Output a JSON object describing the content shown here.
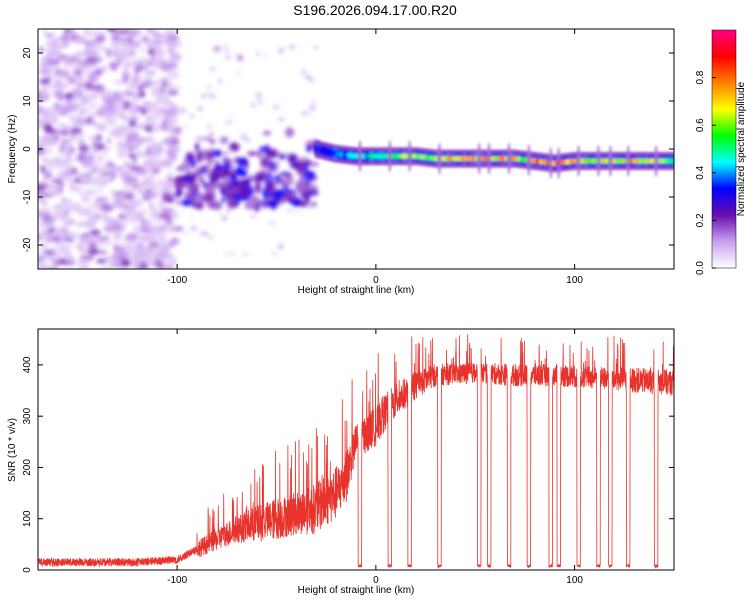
{
  "title": "S196.2026.094.17.00.R20",
  "chart_data": [
    {
      "type": "heatmap",
      "xlabel": "Height of straight line (km)",
      "ylabel": "Frequency (Hz)",
      "xlim": [
        -170,
        150
      ],
      "ylim": [
        -25,
        25
      ],
      "xticks": [
        -100,
        0,
        100
      ],
      "xtick_labels": [
        "-100",
        "0",
        "100"
      ],
      "yticks": [
        -20,
        -10,
        0,
        10,
        20
      ],
      "ytick_labels": [
        "-20",
        "-10",
        "0",
        "10",
        "20"
      ],
      "colorbar": {
        "label": "Normalized spectral amplitude",
        "range": [
          0,
          1
        ],
        "ticks": [
          0.0,
          0.2,
          0.4,
          0.6,
          0.8
        ],
        "tick_labels": [
          "0.0",
          "0.2",
          "0.4",
          "0.6",
          "0.8"
        ],
        "colormap": [
          "#ffffff",
          "#c8a0f0",
          "#6a0dad",
          "#0000ff",
          "#00ffff",
          "#00ff00",
          "#ffff00",
          "#ff8000",
          "#ff0000",
          "#ff0080"
        ]
      },
      "regions": [
        {
          "x_range": [
            -170,
            -100
          ],
          "frequency_range": [
            -25,
            25
          ],
          "amplitude": "low noise scatter"
        },
        {
          "x_range": [
            -100,
            -30
          ],
          "frequency_range": [
            -12,
            8
          ],
          "amplitude": "moderate, fragmented"
        },
        {
          "x_range": [
            -30,
            150
          ],
          "frequency_range": [
            -4,
            2
          ],
          "amplitude": "strong narrow band near -2 Hz"
        }
      ],
      "band": {
        "x": [
          -30,
          -20,
          -10,
          0,
          10,
          20,
          30,
          40,
          50,
          60,
          70,
          80,
          90,
          100,
          110,
          120,
          130,
          140,
          150
        ],
        "frequency": [
          0,
          -1,
          -1.5,
          -1.5,
          -1.5,
          -1.5,
          -2,
          -2,
          -2,
          -2,
          -2,
          -2.5,
          -3,
          -2.5,
          -2.5,
          -2.5,
          -2.5,
          -2.5,
          -2.5
        ],
        "peak_amplitude": [
          0.3,
          0.4,
          0.5,
          0.55,
          0.6,
          0.65,
          0.7,
          0.75,
          0.8,
          0.8,
          0.75,
          0.85,
          0.9,
          0.8,
          0.7,
          0.75,
          0.8,
          0.7,
          0.6
        ]
      }
    },
    {
      "type": "line",
      "xlabel": "Height of straight line (km)",
      "ylabel": "SNR (10 * v/v)",
      "xlim": [
        -170,
        150
      ],
      "ylim": [
        0,
        470
      ],
      "xticks": [
        -100,
        0,
        100
      ],
      "xtick_labels": [
        "-100",
        "0",
        "100"
      ],
      "yticks": [
        0,
        100,
        200,
        300,
        400
      ],
      "ytick_labels": [
        "0",
        "100",
        "200",
        "300",
        "400"
      ],
      "color": "#e8322c",
      "envelope": {
        "x": [
          -170,
          -120,
          -100,
          -90,
          -80,
          -70,
          -60,
          -50,
          -40,
          -30,
          -20,
          -15,
          -10,
          0,
          5,
          10,
          20,
          30,
          50,
          70,
          90,
          110,
          130,
          150
        ],
        "mean": [
          15,
          15,
          20,
          40,
          60,
          80,
          90,
          100,
          110,
          120,
          150,
          180,
          250,
          280,
          310,
          330,
          360,
          380,
          385,
          380,
          380,
          375,
          370,
          365
        ],
        "max": [
          30,
          35,
          50,
          100,
          140,
          180,
          220,
          250,
          260,
          300,
          340,
          360,
          380,
          420,
          440,
          450,
          460,
          460,
          460,
          460,
          460,
          455,
          460,
          460
        ]
      },
      "dropouts_x": [
        -8,
        7,
        17,
        32,
        52,
        57,
        67,
        77,
        88,
        92,
        102,
        112,
        118,
        127,
        141
      ]
    }
  ]
}
